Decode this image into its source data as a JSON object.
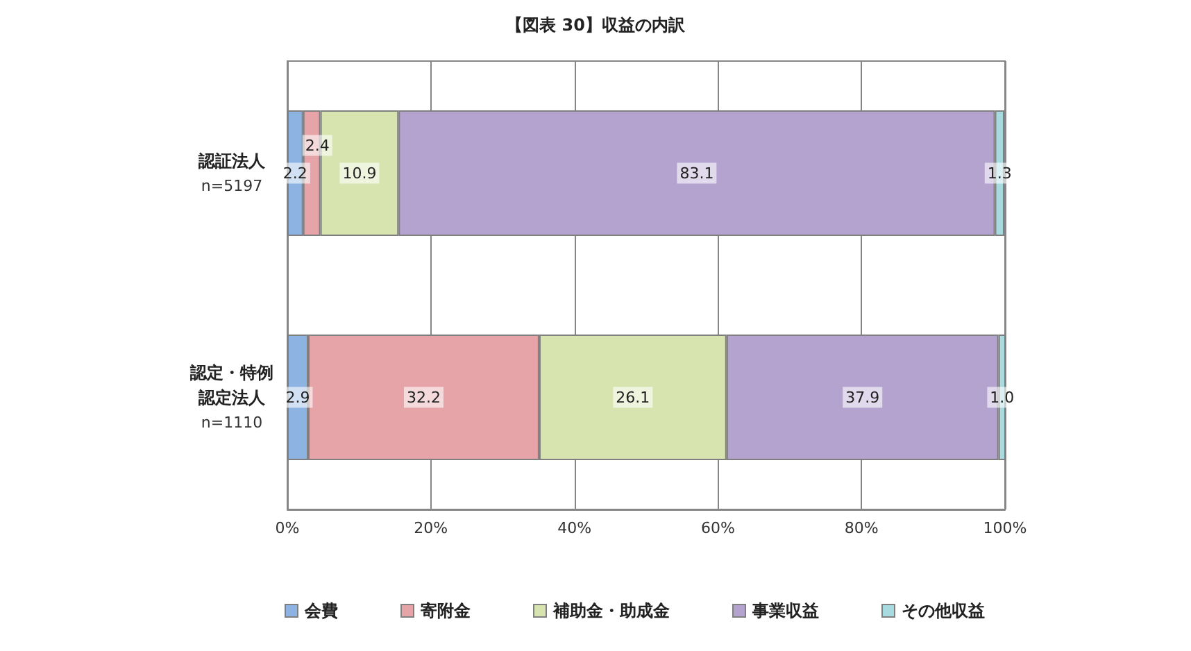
{
  "chart_data": {
    "type": "bar",
    "title": "【図表 30】収益の内訳",
    "orientation": "horizontal",
    "stacked": true,
    "categories": [
      "認証法人\nn=5197",
      "認定・特例認定法人\nn=1110"
    ],
    "series": [
      {
        "name": "会費",
        "color": "#8db3e2",
        "values": [
          2.2,
          2.9
        ],
        "value_labels": [
          "2.2",
          "2.9"
        ]
      },
      {
        "name": "寄附金",
        "color": "#e6a3a8",
        "values": [
          2.4,
          32.2
        ],
        "value_labels": [
          "2.4",
          "32.2"
        ]
      },
      {
        "name": "補助金・助成金",
        "color": "#d7e4b0",
        "values": [
          10.9,
          26.1
        ],
        "value_labels": [
          "10.9",
          "26.1"
        ]
      },
      {
        "name": "事業収益",
        "color": "#b4a2cf",
        "values": [
          83.1,
          37.9
        ],
        "value_labels": [
          "83.1",
          "37.9"
        ]
      },
      {
        "name": "その他収益",
        "color": "#a8dbe0",
        "values": [
          1.3,
          1.0
        ],
        "value_labels": [
          "1.3",
          "1.0"
        ]
      }
    ],
    "xlim": [
      0,
      100
    ],
    "xticks": [
      {
        "value": 0,
        "label": "0%"
      },
      {
        "value": 20,
        "label": "20%"
      },
      {
        "value": 40,
        "label": "40%"
      },
      {
        "value": 60,
        "label": "60%"
      },
      {
        "value": 80,
        "label": "80%"
      },
      {
        "value": 100,
        "label": "100%"
      }
    ],
    "grid": "x",
    "legend": "bottom"
  }
}
